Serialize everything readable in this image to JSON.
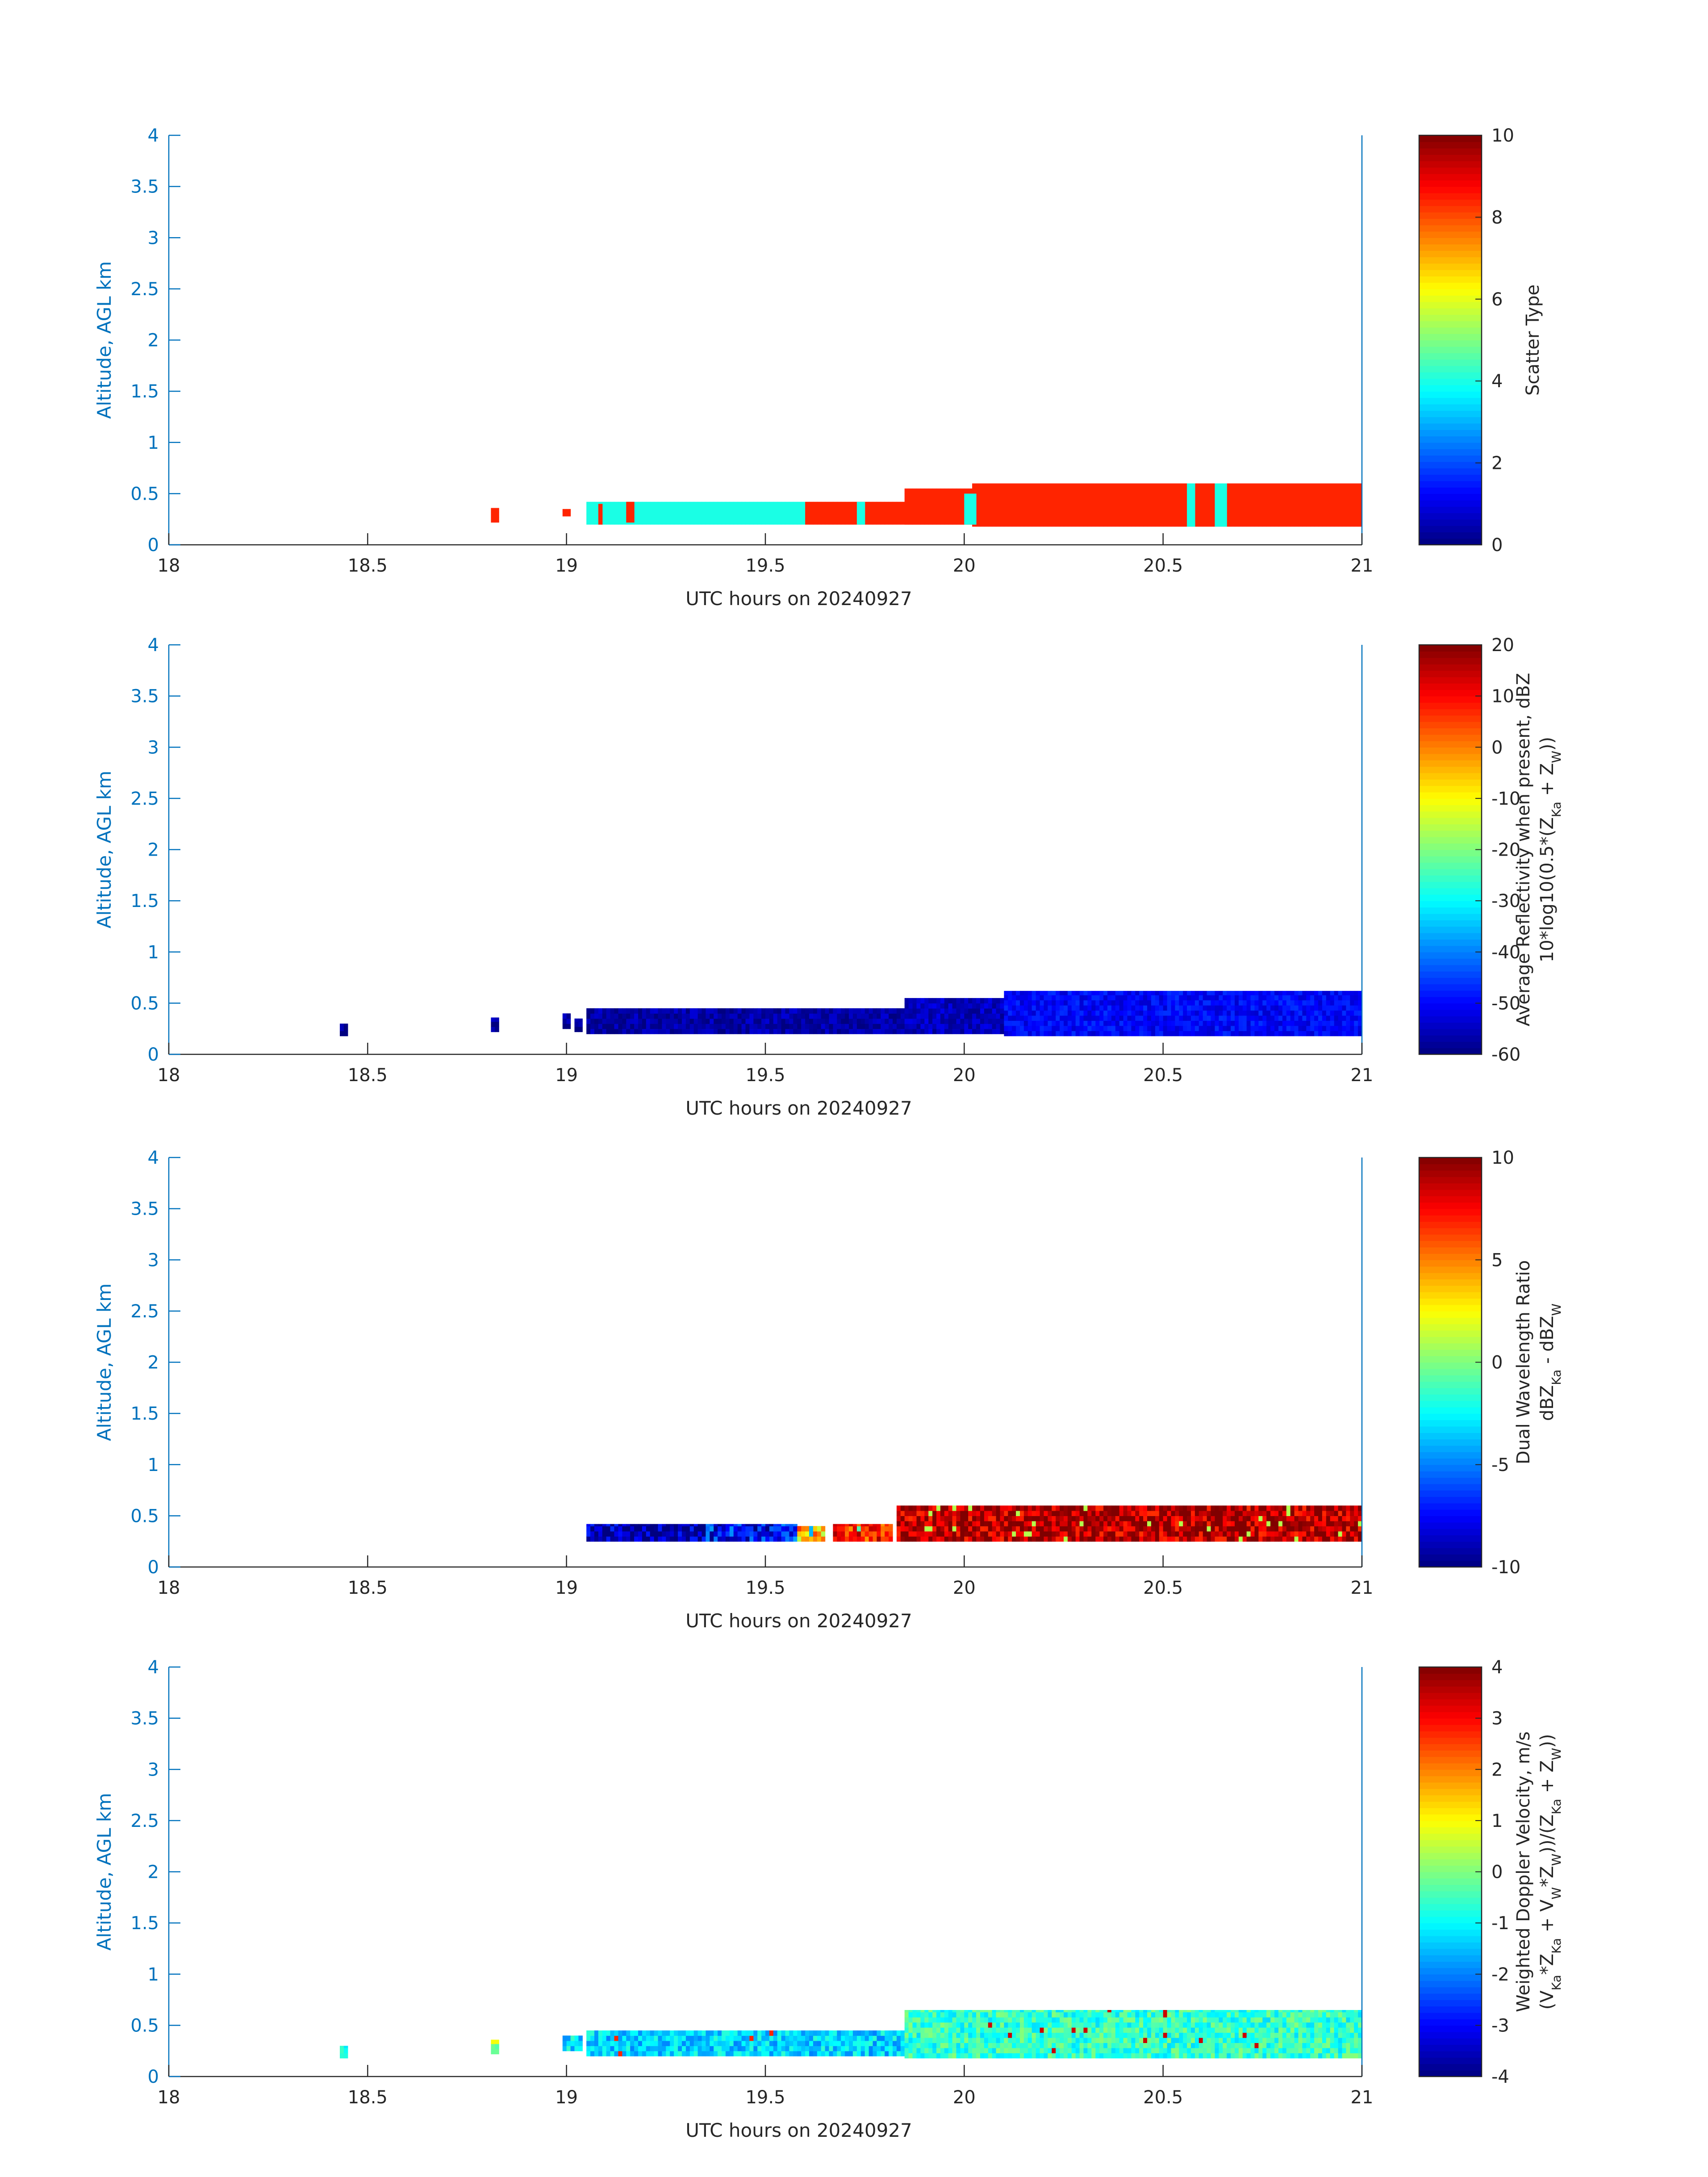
{
  "chart_data": [
    {
      "type": "heatmap",
      "xlabel": "UTC hours on 20240927",
      "ylabel": "Altitude, AGL km",
      "xlim": [
        18,
        21
      ],
      "ylim": [
        0,
        4
      ],
      "xticks": [
        "18",
        "18.5",
        "19",
        "19.5",
        "20",
        "20.5",
        "21"
      ],
      "yticks": [
        "0",
        "0.5",
        "1",
        "1.5",
        "2",
        "2.5",
        "3",
        "3.5",
        "4"
      ],
      "colorbar": {
        "label": [
          "Scatter Type"
        ],
        "range": [
          0,
          10
        ],
        "ticks": [
          "0",
          "2",
          "4",
          "6",
          "8",
          "10"
        ]
      },
      "regions": [
        {
          "x": [
            18.81,
            18.83
          ],
          "y": [
            0.22,
            0.36
          ],
          "value": 8.4
        },
        {
          "x": [
            18.99,
            19.01
          ],
          "y": [
            0.28,
            0.35
          ],
          "value": 8.4
        },
        {
          "x": [
            19.05,
            19.6
          ],
          "y": [
            0.2,
            0.42
          ],
          "value": 4.0
        },
        {
          "x": [
            19.08,
            19.09
          ],
          "y": [
            0.2,
            0.4
          ],
          "value": 8.4
        },
        {
          "x": [
            19.15,
            19.17
          ],
          "y": [
            0.22,
            0.42
          ],
          "value": 8.4
        },
        {
          "x": [
            19.6,
            20.02
          ],
          "y": [
            0.2,
            0.42
          ],
          "value": 8.4
        },
        {
          "x": [
            19.85,
            20.02
          ],
          "y": [
            0.2,
            0.55
          ],
          "value": 8.4
        },
        {
          "x": [
            20.02,
            21.0
          ],
          "y": [
            0.18,
            0.6
          ],
          "value": 8.4
        },
        {
          "x": [
            20.0,
            20.03
          ],
          "y": [
            0.2,
            0.5
          ],
          "value": 4.0
        },
        {
          "x": [
            19.73,
            19.75
          ],
          "y": [
            0.2,
            0.42
          ],
          "value": 4.0
        },
        {
          "x": [
            20.56,
            20.58
          ],
          "y": [
            0.18,
            0.6
          ],
          "value": 4.0
        },
        {
          "x": [
            20.63,
            20.66
          ],
          "y": [
            0.18,
            0.6
          ],
          "value": 4.0
        }
      ]
    },
    {
      "type": "heatmap",
      "xlabel": "UTC hours on 20240927",
      "ylabel": "Altitude, AGL km",
      "xlim": [
        18,
        21
      ],
      "ylim": [
        0,
        4
      ],
      "xticks": [
        "18",
        "18.5",
        "19",
        "19.5",
        "20",
        "20.5",
        "21"
      ],
      "yticks": [
        "0",
        "0.5",
        "1",
        "1.5",
        "2",
        "2.5",
        "3",
        "3.5",
        "4"
      ],
      "colorbar": {
        "label": [
          "Average Reflectivity when present, dBZ",
          "10*log10(0.5*(Z",
          "Ka",
          " + Z",
          "W",
          "))"
        ],
        "range": [
          -60,
          20
        ],
        "ticks": [
          "-60",
          "-50",
          "-40",
          "-30",
          "-20",
          "-10",
          "0",
          "10",
          "20"
        ]
      },
      "regions": [
        {
          "x": [
            18.43,
            18.45
          ],
          "y": [
            0.18,
            0.3
          ],
          "value": -58
        },
        {
          "x": [
            18.81,
            18.83
          ],
          "y": [
            0.22,
            0.36
          ],
          "value": -58
        },
        {
          "x": [
            18.99,
            19.01
          ],
          "y": [
            0.25,
            0.4
          ],
          "value": -58
        },
        {
          "x": [
            19.02,
            19.04
          ],
          "y": [
            0.22,
            0.35
          ],
          "value": -58
        },
        {
          "x": [
            19.05,
            19.85
          ],
          "y": [
            0.2,
            0.45
          ],
          "value": -57
        },
        {
          "x": [
            19.85,
            20.1
          ],
          "y": [
            0.2,
            0.55
          ],
          "value": -55
        },
        {
          "x": [
            20.1,
            21.0
          ],
          "y": [
            0.18,
            0.62
          ],
          "value": -50
        }
      ]
    },
    {
      "type": "heatmap",
      "xlabel": "UTC hours on 20240927",
      "ylabel": "Altitude, AGL km",
      "xlim": [
        18,
        21
      ],
      "ylim": [
        0,
        4
      ],
      "xticks": [
        "18",
        "18.5",
        "19",
        "19.5",
        "20",
        "20.5",
        "21"
      ],
      "yticks": [
        "0",
        "0.5",
        "1",
        "1.5",
        "2",
        "2.5",
        "3",
        "3.5",
        "4"
      ],
      "colorbar": {
        "label": [
          "Dual Wavelength Ratio",
          "dBZ",
          "Ka",
          " - dBZ",
          "W"
        ],
        "range": [
          -10,
          10
        ],
        "ticks": [
          "-10",
          "-5",
          "0",
          "5",
          "10"
        ]
      },
      "regions": [
        {
          "x": [
            19.05,
            19.35
          ],
          "y": [
            0.25,
            0.42
          ],
          "value": -9.5
        },
        {
          "x": [
            19.35,
            19.58
          ],
          "y": [
            0.25,
            0.42
          ],
          "value": -7.0
        },
        {
          "x": [
            19.58,
            19.65
          ],
          "y": [
            0.25,
            0.4
          ],
          "value": 4.0
        },
        {
          "x": [
            19.67,
            19.82
          ],
          "y": [
            0.25,
            0.42
          ],
          "value": 7.0
        },
        {
          "x": [
            19.83,
            21.0
          ],
          "y": [
            0.25,
            0.6
          ],
          "value": 9.0
        }
      ]
    },
    {
      "type": "heatmap",
      "xlabel": "UTC hours on 20240927",
      "ylabel": "Altitude, AGL km",
      "xlim": [
        18,
        21
      ],
      "ylim": [
        0,
        4
      ],
      "xticks": [
        "18",
        "18.5",
        "19",
        "19.5",
        "20",
        "20.5",
        "21"
      ],
      "yticks": [
        "0",
        "0.5",
        "1",
        "1.5",
        "2",
        "2.5",
        "3",
        "3.5",
        "4"
      ],
      "colorbar": {
        "label": [
          "Weighted Doppler Velocity, m/s",
          "(V",
          "Ka",
          "*Z",
          "Ka",
          " + V",
          "W",
          "*Z",
          "W",
          "))/(Z",
          "Ka",
          " + Z",
          "W",
          "))"
        ],
        "range": [
          -4,
          4
        ],
        "ticks": [
          "-4",
          "-3",
          "-2",
          "-1",
          "0",
          "1",
          "2",
          "3",
          "4"
        ]
      },
      "regions": [
        {
          "x": [
            18.43,
            18.45
          ],
          "y": [
            0.18,
            0.3
          ],
          "value": -0.6
        },
        {
          "x": [
            18.81,
            18.83
          ],
          "y": [
            0.22,
            0.36
          ],
          "value": 0.3
        },
        {
          "x": [
            18.99,
            19.04
          ],
          "y": [
            0.25,
            0.4
          ],
          "value": -1.2
        },
        {
          "x": [
            19.05,
            19.85
          ],
          "y": [
            0.2,
            0.45
          ],
          "value": -1.3
        },
        {
          "x": [
            19.85,
            21.0
          ],
          "y": [
            0.18,
            0.65
          ],
          "value": -0.6
        }
      ]
    }
  ]
}
